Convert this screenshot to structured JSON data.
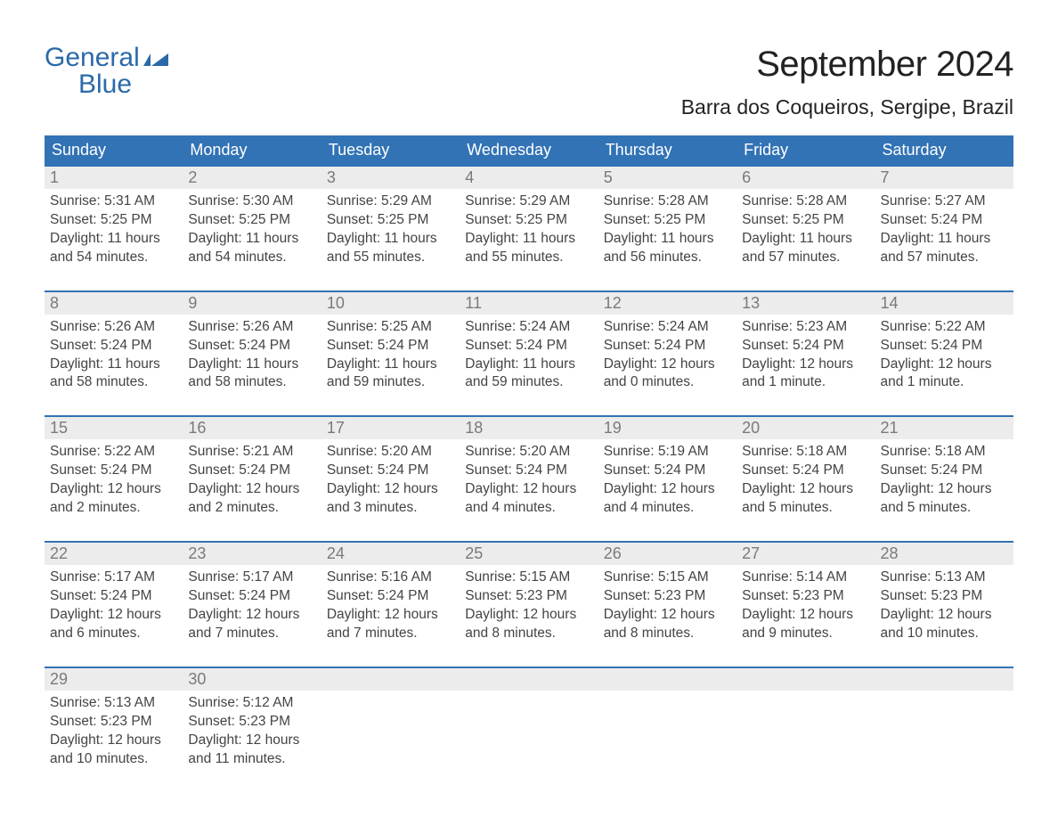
{
  "logo": {
    "word1": "General",
    "word2": "Blue",
    "color": "#2b6aa8"
  },
  "title": "September 2024",
  "location": "Barra dos Coqueiros, Sergipe, Brazil",
  "colors": {
    "header_bg": "#3273b5",
    "header_text": "#ffffff",
    "daynum_bg": "#ececec",
    "daynum_text": "#7a7a7a",
    "body_text": "#444444",
    "week_border": "#3273b5",
    "page_bg": "#ffffff"
  },
  "typography": {
    "month_title_fontsize": 40,
    "location_fontsize": 23,
    "dow_fontsize": 18,
    "daynum_fontsize": 18,
    "cell_fontsize": 15.5,
    "logo_fontsize": 30
  },
  "days_of_week": [
    "Sunday",
    "Monday",
    "Tuesday",
    "Wednesday",
    "Thursday",
    "Friday",
    "Saturday"
  ],
  "labels": {
    "sunrise": "Sunrise:",
    "sunset": "Sunset:",
    "daylight_prefix": "Daylight:"
  },
  "weeks": [
    [
      {
        "num": "1",
        "sunrise": "5:31 AM",
        "sunset": "5:25 PM",
        "daylight": "11 hours and 54 minutes."
      },
      {
        "num": "2",
        "sunrise": "5:30 AM",
        "sunset": "5:25 PM",
        "daylight": "11 hours and 54 minutes."
      },
      {
        "num": "3",
        "sunrise": "5:29 AM",
        "sunset": "5:25 PM",
        "daylight": "11 hours and 55 minutes."
      },
      {
        "num": "4",
        "sunrise": "5:29 AM",
        "sunset": "5:25 PM",
        "daylight": "11 hours and 55 minutes."
      },
      {
        "num": "5",
        "sunrise": "5:28 AM",
        "sunset": "5:25 PM",
        "daylight": "11 hours and 56 minutes."
      },
      {
        "num": "6",
        "sunrise": "5:28 AM",
        "sunset": "5:25 PM",
        "daylight": "11 hours and 57 minutes."
      },
      {
        "num": "7",
        "sunrise": "5:27 AM",
        "sunset": "5:24 PM",
        "daylight": "11 hours and 57 minutes."
      }
    ],
    [
      {
        "num": "8",
        "sunrise": "5:26 AM",
        "sunset": "5:24 PM",
        "daylight": "11 hours and 58 minutes."
      },
      {
        "num": "9",
        "sunrise": "5:26 AM",
        "sunset": "5:24 PM",
        "daylight": "11 hours and 58 minutes."
      },
      {
        "num": "10",
        "sunrise": "5:25 AM",
        "sunset": "5:24 PM",
        "daylight": "11 hours and 59 minutes."
      },
      {
        "num": "11",
        "sunrise": "5:24 AM",
        "sunset": "5:24 PM",
        "daylight": "11 hours and 59 minutes."
      },
      {
        "num": "12",
        "sunrise": "5:24 AM",
        "sunset": "5:24 PM",
        "daylight": "12 hours and 0 minutes."
      },
      {
        "num": "13",
        "sunrise": "5:23 AM",
        "sunset": "5:24 PM",
        "daylight": "12 hours and 1 minute."
      },
      {
        "num": "14",
        "sunrise": "5:22 AM",
        "sunset": "5:24 PM",
        "daylight": "12 hours and 1 minute."
      }
    ],
    [
      {
        "num": "15",
        "sunrise": "5:22 AM",
        "sunset": "5:24 PM",
        "daylight": "12 hours and 2 minutes."
      },
      {
        "num": "16",
        "sunrise": "5:21 AM",
        "sunset": "5:24 PM",
        "daylight": "12 hours and 2 minutes."
      },
      {
        "num": "17",
        "sunrise": "5:20 AM",
        "sunset": "5:24 PM",
        "daylight": "12 hours and 3 minutes."
      },
      {
        "num": "18",
        "sunrise": "5:20 AM",
        "sunset": "5:24 PM",
        "daylight": "12 hours and 4 minutes."
      },
      {
        "num": "19",
        "sunrise": "5:19 AM",
        "sunset": "5:24 PM",
        "daylight": "12 hours and 4 minutes."
      },
      {
        "num": "20",
        "sunrise": "5:18 AM",
        "sunset": "5:24 PM",
        "daylight": "12 hours and 5 minutes."
      },
      {
        "num": "21",
        "sunrise": "5:18 AM",
        "sunset": "5:24 PM",
        "daylight": "12 hours and 5 minutes."
      }
    ],
    [
      {
        "num": "22",
        "sunrise": "5:17 AM",
        "sunset": "5:24 PM",
        "daylight": "12 hours and 6 minutes."
      },
      {
        "num": "23",
        "sunrise": "5:17 AM",
        "sunset": "5:24 PM",
        "daylight": "12 hours and 7 minutes."
      },
      {
        "num": "24",
        "sunrise": "5:16 AM",
        "sunset": "5:24 PM",
        "daylight": "12 hours and 7 minutes."
      },
      {
        "num": "25",
        "sunrise": "5:15 AM",
        "sunset": "5:23 PM",
        "daylight": "12 hours and 8 minutes."
      },
      {
        "num": "26",
        "sunrise": "5:15 AM",
        "sunset": "5:23 PM",
        "daylight": "12 hours and 8 minutes."
      },
      {
        "num": "27",
        "sunrise": "5:14 AM",
        "sunset": "5:23 PM",
        "daylight": "12 hours and 9 minutes."
      },
      {
        "num": "28",
        "sunrise": "5:13 AM",
        "sunset": "5:23 PM",
        "daylight": "12 hours and 10 minutes."
      }
    ],
    [
      {
        "num": "29",
        "sunrise": "5:13 AM",
        "sunset": "5:23 PM",
        "daylight": "12 hours and 10 minutes."
      },
      {
        "num": "30",
        "sunrise": "5:12 AM",
        "sunset": "5:23 PM",
        "daylight": "12 hours and 11 minutes."
      },
      null,
      null,
      null,
      null,
      null
    ]
  ]
}
